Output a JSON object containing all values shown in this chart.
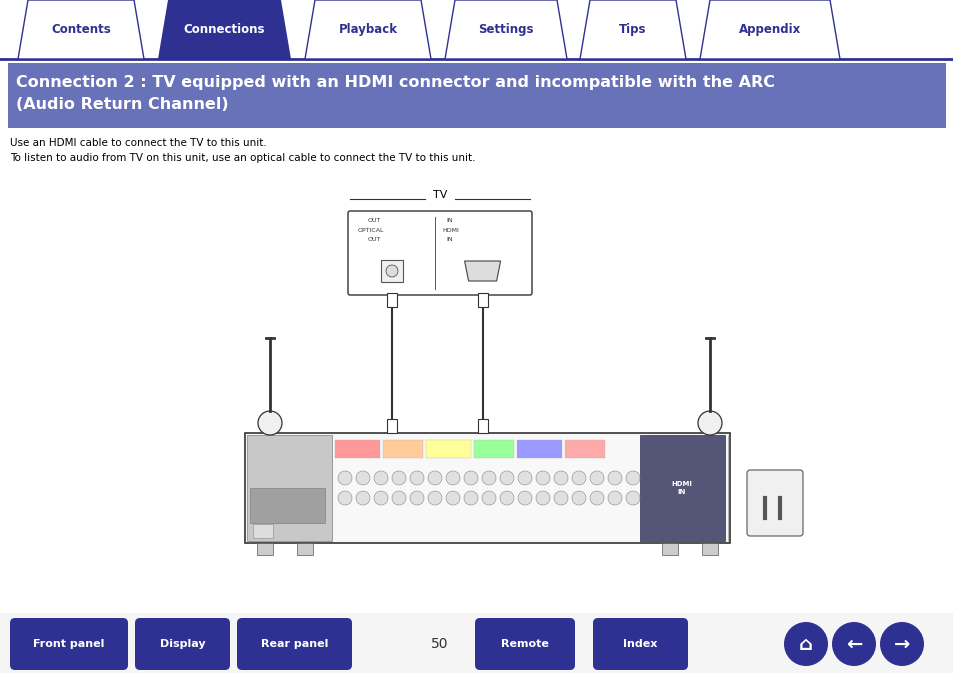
{
  "bg_color": "#ffffff",
  "tab_bar_color": "#2e3191",
  "tab_active_color": "#2e3191",
  "tab_inactive_fill": "#ffffff",
  "tab_active_text": "#ffffff",
  "tab_inactive_text": "#2e3191",
  "tabs": [
    "Contents",
    "Connections",
    "Playback",
    "Settings",
    "Tips",
    "Appendix"
  ],
  "active_tab": 1,
  "header_bg": "#6872b8",
  "header_text_line1": "Connection 2 : TV equipped with an HDMI connector and incompatible with the ARC",
  "header_text_line2": "(Audio Return Channel)",
  "header_text_color": "#ffffff",
  "body_line1": "Use an HDMI cable to connect the TV to this unit.",
  "body_line2": "To listen to audio from TV on this unit, use an optical cable to connect the TV to this unit.",
  "body_text_color": "#000000",
  "page_number": "50",
  "bottom_buttons": [
    "Front panel",
    "Display",
    "Rear panel",
    "Remote",
    "Index"
  ],
  "bottom_btn_color": "#2e3191",
  "bottom_btn_text_color": "#ffffff",
  "figure_width": 9.54,
  "figure_height": 6.73,
  "dpi": 100
}
